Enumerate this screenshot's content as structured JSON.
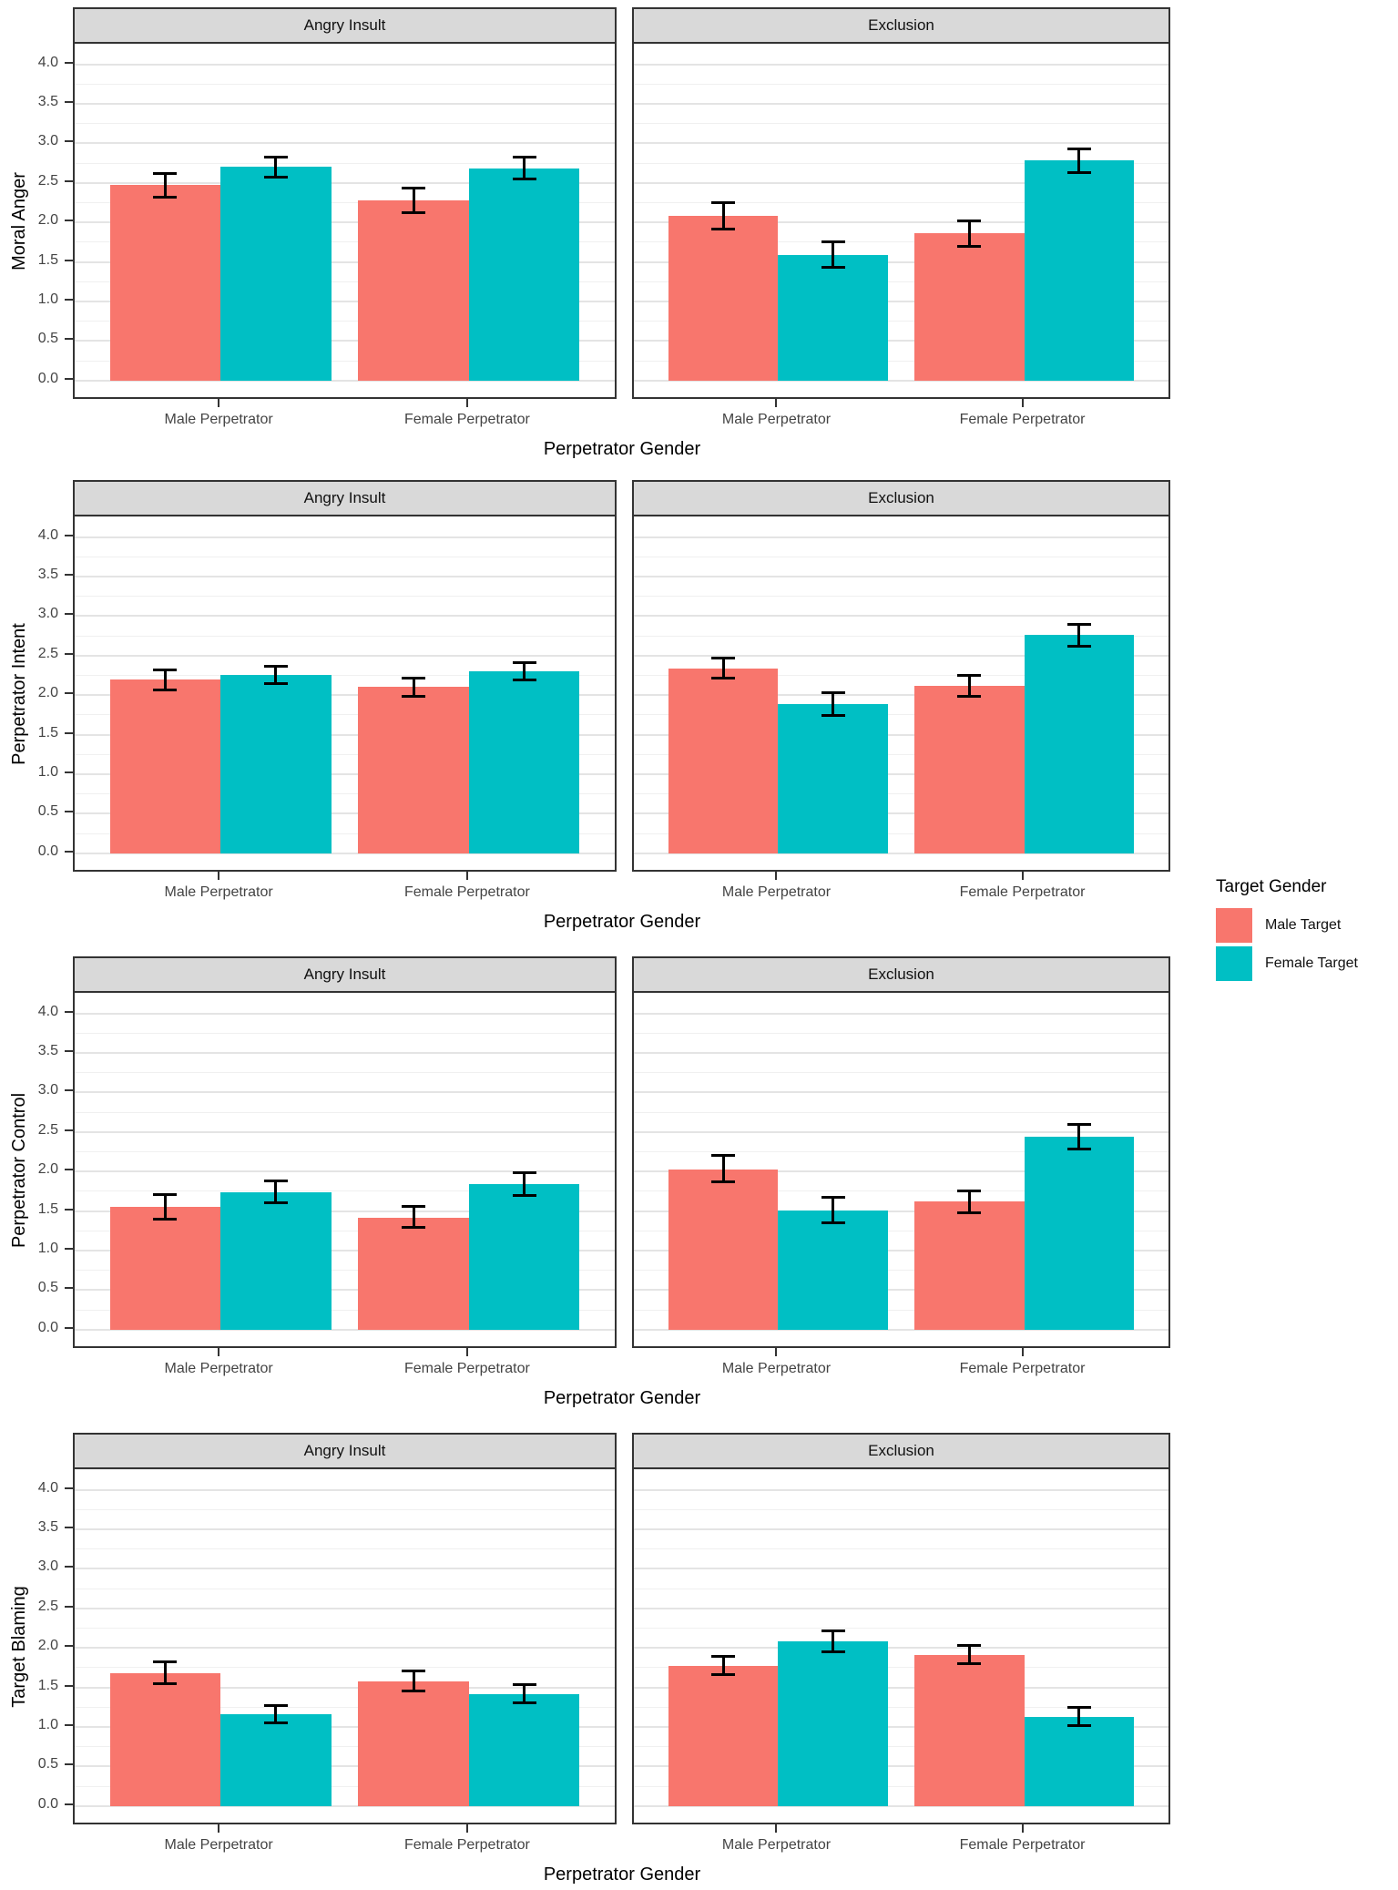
{
  "figure": {
    "x_axis_title": "Perpetrator Gender",
    "x_categories": [
      "Male Perpetrator",
      "Female Perpetrator"
    ],
    "facet_labels": [
      "Angry Insult",
      "Exclusion"
    ],
    "y_tick_labels": [
      "0.0",
      "0.5",
      "1.0",
      "1.5",
      "2.0",
      "2.5",
      "3.0",
      "3.5",
      "4.0"
    ],
    "grid": true,
    "legend_position": "right",
    "colors": {
      "male_target": "#F8766D",
      "female_target": "#00BFC4",
      "strip_background": "#D9D9D9",
      "panel_border": "#333333"
    }
  },
  "legend": {
    "title": "Target Gender",
    "items": [
      {
        "label": "Male Target",
        "color": "#F8766D"
      },
      {
        "label": "Female Target",
        "color": "#00BFC4"
      }
    ]
  },
  "chart_data": [
    {
      "type": "bar",
      "ylabel": "Moral Anger",
      "xlabel": "Perpetrator Gender",
      "ylim": [
        0,
        4
      ],
      "facets": [
        {
          "label": "Angry Insult",
          "categories": [
            "Male Perpetrator",
            "Female Perpetrator"
          ],
          "series": [
            {
              "name": "Male Target",
              "color": "#F8766D",
              "values": [
                2.47,
                2.28
              ],
              "err_low": [
                2.32,
                2.12
              ],
              "err_high": [
                2.62,
                2.43
              ]
            },
            {
              "name": "Female Target",
              "color": "#00BFC4",
              "values": [
                2.7,
                2.68
              ],
              "err_low": [
                2.57,
                2.55
              ],
              "err_high": [
                2.83,
                2.82
              ]
            }
          ]
        },
        {
          "label": "Exclusion",
          "categories": [
            "Male Perpetrator",
            "Female Perpetrator"
          ],
          "series": [
            {
              "name": "Male Target",
              "color": "#F8766D",
              "values": [
                2.08,
                1.86
              ],
              "err_low": [
                1.92,
                1.7
              ],
              "err_high": [
                2.25,
                2.02
              ]
            },
            {
              "name": "Female Target",
              "color": "#00BFC4",
              "values": [
                1.59,
                2.78
              ],
              "err_low": [
                1.43,
                2.63
              ],
              "err_high": [
                1.76,
                2.93
              ]
            }
          ]
        }
      ]
    },
    {
      "type": "bar",
      "ylabel": "Perpetrator Intent",
      "xlabel": "Perpetrator Gender",
      "ylim": [
        0,
        4
      ],
      "facets": [
        {
          "label": "Angry Insult",
          "categories": [
            "Male Perpetrator",
            "Female Perpetrator"
          ],
          "series": [
            {
              "name": "Male Target",
              "color": "#F8766D",
              "values": [
                2.2,
                2.1
              ],
              "err_low": [
                2.07,
                1.98
              ],
              "err_high": [
                2.32,
                2.22
              ]
            },
            {
              "name": "Female Target",
              "color": "#00BFC4",
              "values": [
                2.26,
                2.3
              ],
              "err_low": [
                2.15,
                2.19
              ],
              "err_high": [
                2.37,
                2.41
              ]
            }
          ]
        },
        {
          "label": "Exclusion",
          "categories": [
            "Male Perpetrator",
            "Female Perpetrator"
          ],
          "series": [
            {
              "name": "Male Target",
              "color": "#F8766D",
              "values": [
                2.34,
                2.12
              ],
              "err_low": [
                2.21,
                1.99
              ],
              "err_high": [
                2.47,
                2.25
              ]
            },
            {
              "name": "Female Target",
              "color": "#00BFC4",
              "values": [
                1.89,
                2.76
              ],
              "err_low": [
                1.74,
                2.62
              ],
              "err_high": [
                2.03,
                2.89
              ]
            }
          ]
        }
      ]
    },
    {
      "type": "bar",
      "ylabel": "Perpetrator Control",
      "xlabel": "Perpetrator Gender",
      "ylim": [
        0,
        4
      ],
      "facets": [
        {
          "label": "Angry Insult",
          "categories": [
            "Male Perpetrator",
            "Female Perpetrator"
          ],
          "series": [
            {
              "name": "Male Target",
              "color": "#F8766D",
              "values": [
                1.55,
                1.42
              ],
              "err_low": [
                1.4,
                1.29
              ],
              "err_high": [
                1.71,
                1.56
              ]
            },
            {
              "name": "Female Target",
              "color": "#00BFC4",
              "values": [
                1.74,
                1.84
              ],
              "err_low": [
                1.6,
                1.7
              ],
              "err_high": [
                1.88,
                1.99
              ]
            }
          ]
        },
        {
          "label": "Exclusion",
          "categories": [
            "Male Perpetrator",
            "Female Perpetrator"
          ],
          "series": [
            {
              "name": "Male Target",
              "color": "#F8766D",
              "values": [
                2.03,
                1.62
              ],
              "err_low": [
                1.87,
                1.48
              ],
              "err_high": [
                2.2,
                1.76
              ]
            },
            {
              "name": "Female Target",
              "color": "#00BFC4",
              "values": [
                1.51,
                2.44
              ],
              "err_low": [
                1.35,
                2.28
              ],
              "err_high": [
                1.67,
                2.6
              ]
            }
          ]
        }
      ]
    },
    {
      "type": "bar",
      "ylabel": "Target Blaming",
      "xlabel": "Perpetrator Gender",
      "ylim": [
        0,
        4
      ],
      "facets": [
        {
          "label": "Angry Insult",
          "categories": [
            "Male Perpetrator",
            "Female Perpetrator"
          ],
          "series": [
            {
              "name": "Male Target",
              "color": "#F8766D",
              "values": [
                1.68,
                1.58
              ],
              "err_low": [
                1.55,
                1.46
              ],
              "err_high": [
                1.82,
                1.71
              ]
            },
            {
              "name": "Female Target",
              "color": "#00BFC4",
              "values": [
                1.16,
                1.41
              ],
              "err_low": [
                1.05,
                1.31
              ],
              "err_high": [
                1.27,
                1.53
              ]
            }
          ]
        },
        {
          "label": "Exclusion",
          "categories": [
            "Male Perpetrator",
            "Female Perpetrator"
          ],
          "series": [
            {
              "name": "Male Target",
              "color": "#F8766D",
              "values": [
                1.77,
                1.91
              ],
              "err_low": [
                1.66,
                1.8
              ],
              "err_high": [
                1.89,
                2.03
              ]
            },
            {
              "name": "Female Target",
              "color": "#00BFC4",
              "values": [
                2.08,
                1.13
              ],
              "err_low": [
                1.95,
                1.02
              ],
              "err_high": [
                2.21,
                1.25
              ]
            }
          ]
        }
      ]
    }
  ]
}
